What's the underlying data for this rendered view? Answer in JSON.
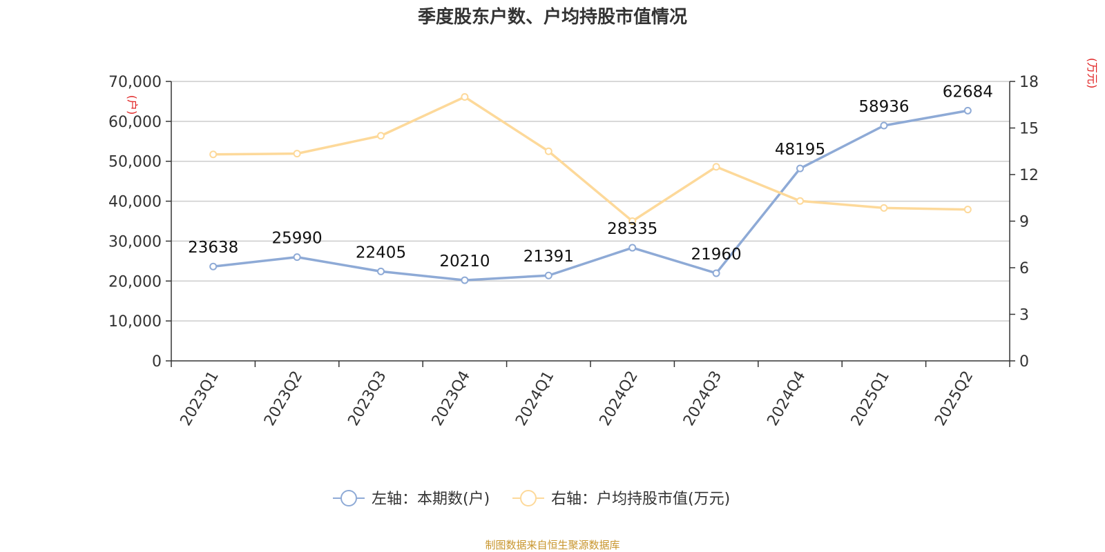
{
  "title": "季度股东户数、户均持股市值情况",
  "source": "制图数据来自恒生聚源数据库",
  "chart_data": {
    "type": "line",
    "categories": [
      "2023Q1",
      "2023Q2",
      "2023Q3",
      "2023Q4",
      "2024Q1",
      "2024Q2",
      "2024Q3",
      "2024Q4",
      "2025Q1",
      "2025Q2"
    ],
    "left_axis": {
      "unit": "(户)",
      "ylim": [
        0,
        70000
      ],
      "ticks": [
        0,
        10000,
        20000,
        30000,
        40000,
        50000,
        60000,
        70000
      ],
      "tick_labels": [
        "0",
        "10,000",
        "20,000",
        "30,000",
        "40,000",
        "50,000",
        "60,000",
        "70,000"
      ]
    },
    "right_axis": {
      "unit": "(万元)",
      "ylim": [
        0,
        18
      ],
      "ticks": [
        0,
        3,
        6,
        9,
        12,
        15,
        18
      ],
      "tick_labels": [
        "0",
        "3",
        "6",
        "9",
        "12",
        "15",
        "18"
      ]
    },
    "series": [
      {
        "name": "左轴：本期数(户)",
        "axis": "left",
        "color": "#8eaad6",
        "values": [
          23638,
          25990,
          22405,
          20210,
          21391,
          28335,
          21960,
          48195,
          58936,
          62684
        ],
        "data_labels": [
          "23638",
          "25990",
          "22405",
          "20210",
          "21391",
          "28335",
          "21960",
          "48195",
          "58936",
          "62684"
        ]
      },
      {
        "name": "右轴：户均持股市值(万元)",
        "axis": "right",
        "color": "#fdd99a",
        "values": [
          13.3,
          13.35,
          14.5,
          17.0,
          13.5,
          9.0,
          12.5,
          10.3,
          9.85,
          9.75
        ]
      }
    ],
    "grid": true,
    "legend_position": "bottom-center"
  }
}
